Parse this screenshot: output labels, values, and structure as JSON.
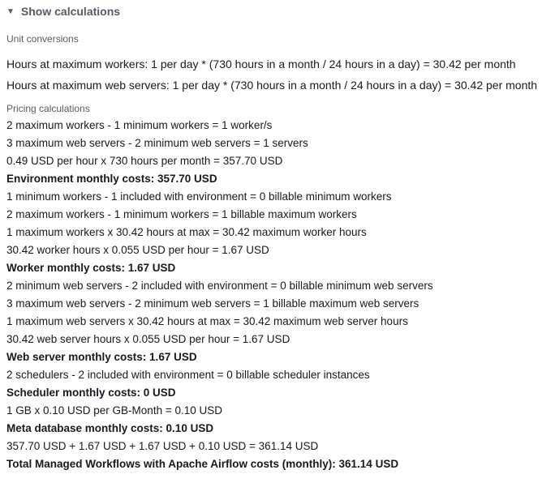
{
  "toggle": {
    "label": "Show calculations",
    "expanded": true
  },
  "unit_conversions": {
    "label": "Unit conversions",
    "lines": [
      "Hours at maximum workers: 1 per day * (730 hours in a month / 24 hours in a day) = 30.42 per month",
      "Hours at maximum web servers: 1 per day * (730 hours in a month / 24 hours in a day) = 30.42 per month"
    ]
  },
  "pricing_calculations": {
    "label": "Pricing calculations",
    "lines": [
      {
        "text": "2 maximum workers - 1 minimum workers = 1 worker/s",
        "bold": false
      },
      {
        "text": "3 maximum web servers - 2 minimum web servers = 1 servers",
        "bold": false
      },
      {
        "text": "0.49 USD per hour x 730 hours per month = 357.70 USD",
        "bold": false
      },
      {
        "text": "Environment monthly costs: 357.70 USD",
        "bold": true
      },
      {
        "text": "1 minimum workers - 1 included with environment = 0 billable minimum workers",
        "bold": false
      },
      {
        "text": "2 maximum workers - 1 minimum workers = 1 billable maximum workers",
        "bold": false
      },
      {
        "text": "1 maximum workers x 30.42 hours at max = 30.42 maximum worker hours",
        "bold": false
      },
      {
        "text": "30.42 worker hours x 0.055 USD per hour = 1.67 USD",
        "bold": false
      },
      {
        "text": "Worker monthly costs: 1.67 USD",
        "bold": true
      },
      {
        "text": "2 minimum web servers - 2 included with environment = 0 billable minimum web servers",
        "bold": false
      },
      {
        "text": "3 maximum web servers - 2 minimum web servers = 1 billable maximum web servers",
        "bold": false
      },
      {
        "text": "1 maximum web servers x 30.42 hours at max = 30.42 maximum web server hours",
        "bold": false
      },
      {
        "text": "30.42 web server hours x 0.055 USD per hour = 1.67 USD",
        "bold": false
      },
      {
        "text": "Web server monthly costs: 1.67 USD",
        "bold": true
      },
      {
        "text": "2 schedulers - 2 included with environment = 0 billable scheduler instances",
        "bold": false
      },
      {
        "text": "Scheduler monthly costs: 0 USD",
        "bold": true
      },
      {
        "text": "1 GB x 0.10 USD per GB-Month = 0.10 USD",
        "bold": false
      },
      {
        "text": "Meta database monthly costs: 0.10 USD",
        "bold": true
      },
      {
        "text": "357.70 USD + 1.67 USD + 1.67 USD + 0.10 USD = 361.14 USD",
        "bold": false
      },
      {
        "text": "Total Managed Workflows with Apache Airflow costs (monthly): 361.14 USD",
        "bold": true
      }
    ]
  }
}
